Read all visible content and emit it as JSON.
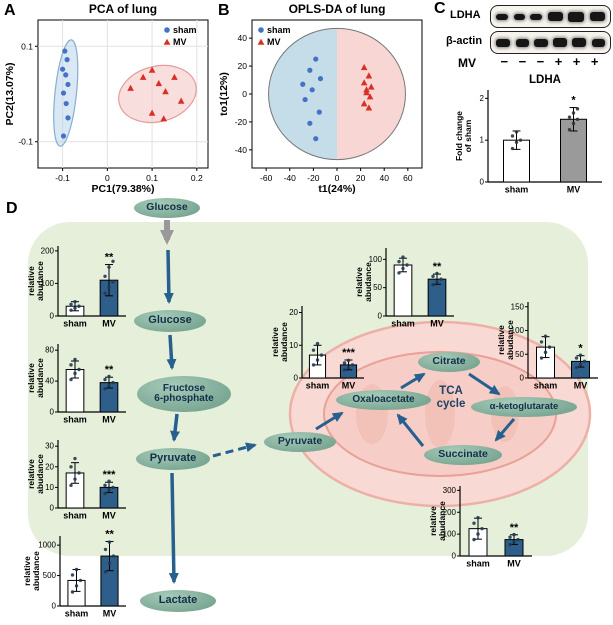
{
  "panels": {
    "a": "A",
    "b": "B",
    "c": "C",
    "d": "D"
  },
  "blot": {
    "ldha_label": "LDHA",
    "actin_label": "β-actin",
    "mv_label": "MV",
    "mv_signs": [
      "−",
      "−",
      "−",
      "+",
      "+",
      "+"
    ]
  },
  "pathway": {
    "nodes": {
      "glucose_top": "Glucose",
      "glucose": "Glucose",
      "fructose_line1": "Fructose",
      "fructose_line2": "6-phosphate",
      "pyruvate": "Pyruvate",
      "lactate": "Lactate",
      "pyruvate_mito": "Pyruvate",
      "oxaloacetate": "Oxaloacetate",
      "citrate": "Citrate",
      "tca_line1": "TCA",
      "tca_line2": "cycle",
      "ketoglutarate": "α-ketoglutarate",
      "succinate": "Succinate"
    }
  },
  "colors": {
    "sham_marker": "#4472c4",
    "mv_marker": "#d93025",
    "mv_bar_d": "#2e5f8a",
    "mv_bar_c": "#9a9a9a",
    "background_green": "#e5efda",
    "mitochondrion_pink": "#f8d9d3",
    "node_teal": "#7ca995"
  },
  "chart_data": [
    {
      "id": "pca",
      "type": "scatter",
      "title": "PCA of lung",
      "xlabel": "PC1(79.38%)",
      "ylabel": "PC2(13.07%)",
      "xlim": [
        -0.155,
        0.225
      ],
      "ylim": [
        -0.155,
        0.155
      ],
      "xticks": [
        -0.1,
        0,
        0.1,
        0.2
      ],
      "yticks": [
        -0.1,
        0.1
      ],
      "grid": true,
      "legend_pos": "right",
      "series": [
        {
          "name": "sham",
          "marker": "circle",
          "color": "#4472c4",
          "points": [
            [
              -0.095,
              0.09
            ],
            [
              -0.09,
              0.072
            ],
            [
              -0.1,
              0.052
            ],
            [
              -0.093,
              0.04
            ],
            [
              -0.088,
              0.02
            ],
            [
              -0.098,
              0.002
            ],
            [
              -0.092,
              -0.02
            ],
            [
              -0.088,
              -0.05
            ],
            [
              -0.098,
              -0.088
            ]
          ]
        },
        {
          "name": "MV",
          "marker": "triangle",
          "color": "#d93025",
          "points": [
            [
              0.052,
              0.012
            ],
            [
              0.08,
              0.035
            ],
            [
              0.1,
              0.05
            ],
            [
              0.115,
              0.022
            ],
            [
              0.13,
              0.005
            ],
            [
              0.15,
              0.035
            ],
            [
              0.165,
              -0.015
            ],
            [
              0.1,
              -0.04
            ],
            [
              0.126,
              -0.052
            ]
          ]
        }
      ],
      "ellipses": [
        {
          "cx": -0.093,
          "cy": 0.002,
          "rx": 0.024,
          "ry": 0.112,
          "angle": 6,
          "fill": "#b9d5eb",
          "opacity": 0.55,
          "stroke": "#86aed3"
        },
        {
          "cx": 0.112,
          "cy": 0.0,
          "rx": 0.088,
          "ry": 0.058,
          "angle": -14,
          "fill": "#f5c8c8",
          "opacity": 0.6,
          "stroke": "#e49c9c"
        }
      ]
    },
    {
      "id": "oplsda",
      "type": "scatter",
      "title": "OPLS-DA of lung",
      "xlabel": "t1(24%)",
      "ylabel": "to1(12%)",
      "xlim": [
        -72,
        72
      ],
      "ylim": [
        -53,
        53
      ],
      "xticks": [
        -60,
        -40,
        -20,
        0,
        20,
        40,
        60
      ],
      "yticks": [
        -40,
        -20,
        0,
        20,
        40
      ],
      "grid": false,
      "legend_pos": "left",
      "split_ellipse": {
        "cx": 0,
        "cy": 0,
        "rx": 58,
        "ry": 47,
        "left_fill": "#c5dde9",
        "right_fill": "#f7d6d4"
      },
      "series": [
        {
          "name": "sham",
          "marker": "circle",
          "color": "#4472c4",
          "points": [
            [
              -18,
              25
            ],
            [
              -23,
              17
            ],
            [
              -14,
              11
            ],
            [
              -21,
              3
            ],
            [
              -27,
              -4
            ],
            [
              -15,
              -13
            ],
            [
              -23,
              -21
            ],
            [
              -18,
              -32
            ],
            [
              -29,
              7
            ]
          ]
        },
        {
          "name": "MV",
          "marker": "triangle",
          "color": "#d93025",
          "points": [
            [
              23,
              19
            ],
            [
              27,
              13
            ],
            [
              23,
              8
            ],
            [
              29,
              5
            ],
            [
              25,
              1
            ],
            [
              28,
              -2
            ],
            [
              23,
              -7
            ],
            [
              27,
              -10
            ],
            [
              25,
              3
            ]
          ]
        }
      ]
    },
    {
      "id": "ldha",
      "type": "bar",
      "title": "LDHA",
      "ylabel_lines": [
        "Fold change",
        "of sham"
      ],
      "categories": [
        "sham",
        "MV"
      ],
      "values": [
        1.0,
        1.5
      ],
      "errors": [
        0.22,
        0.28
      ],
      "yticks": [
        0,
        1,
        2
      ],
      "ylim": [
        0,
        2.2
      ],
      "bar_colors": [
        "#ffffff",
        "#9a9a9a"
      ],
      "dot_color": "#333333",
      "significance": [
        null,
        "*"
      ],
      "points": [
        [
          0.8,
          0.95,
          1.0,
          1.1,
          1.2
        ],
        [
          1.25,
          1.4,
          1.5,
          1.55,
          1.65,
          1.75
        ]
      ],
      "ml": 34,
      "mt": 18,
      "bw": 26
    },
    {
      "id": "glucose",
      "type": "bar",
      "ylabel_lines": [
        "relative",
        "abudance"
      ],
      "categories": [
        "sham",
        "MV"
      ],
      "values": [
        30,
        110
      ],
      "errors": [
        14,
        48
      ],
      "yticks": [
        0,
        100,
        200
      ],
      "ylim": [
        0,
        215
      ],
      "bar_colors": [
        "#ffffff",
        "#2e5f8a"
      ],
      "dot_color": "#203a52",
      "significance": [
        null,
        "**"
      ],
      "points": [
        [
          18,
          24,
          30,
          36,
          44
        ],
        [
          70,
          88,
          105,
          122,
          150,
          168
        ]
      ]
    },
    {
      "id": "fructose6p",
      "type": "bar",
      "ylabel_lines": [
        "relative",
        "abudance"
      ],
      "categories": [
        "sham",
        "MV"
      ],
      "values": [
        55,
        38
      ],
      "errors": [
        11,
        7
      ],
      "yticks": [
        0,
        40,
        80
      ],
      "ylim": [
        0,
        88
      ],
      "bar_colors": [
        "#ffffff",
        "#2e5f8a"
      ],
      "dot_color": "#203a52",
      "significance": [
        null,
        "**"
      ],
      "points": [
        [
          42,
          50,
          55,
          61,
          68
        ],
        [
          30,
          34,
          38,
          42,
          46
        ]
      ]
    },
    {
      "id": "pyruvate",
      "type": "bar",
      "ylabel_lines": [
        "relative",
        "abudance"
      ],
      "categories": [
        "sham",
        "MV"
      ],
      "values": [
        17,
        10
      ],
      "errors": [
        5,
        2.5
      ],
      "yticks": [
        0,
        10,
        20,
        30
      ],
      "ylim": [
        0,
        33
      ],
      "bar_colors": [
        "#ffffff",
        "#2e5f8a"
      ],
      "dot_color": "#203a52",
      "significance": [
        null,
        "***"
      ],
      "points": [
        [
          11,
          14,
          17,
          20,
          24
        ],
        [
          7,
          9,
          10,
          11,
          13
        ]
      ]
    },
    {
      "id": "lactate",
      "type": "bar",
      "ylabel_lines": [
        "relative",
        "abudance"
      ],
      "categories": [
        "sham",
        "MV"
      ],
      "values": [
        420,
        820
      ],
      "errors": [
        180,
        240
      ],
      "yticks": [
        0,
        500,
        1000
      ],
      "ylim": [
        0,
        1150
      ],
      "bar_colors": [
        "#ffffff",
        "#2e5f8a"
      ],
      "dot_color": "#203a52",
      "significance": [
        null,
        "**"
      ],
      "points": [
        [
          230,
          330,
          420,
          510,
          600
        ],
        [
          560,
          700,
          820,
          930,
          1050
        ]
      ],
      "ml": 38
    },
    {
      "id": "oxaloacetate",
      "type": "bar",
      "ylabel_lines": [
        "relative",
        "abudance"
      ],
      "categories": [
        "sham",
        "MV"
      ],
      "values": [
        7,
        4
      ],
      "errors": [
        3,
        1.5
      ],
      "yticks": [
        0,
        10,
        20
      ],
      "ylim": [
        0,
        22
      ],
      "bar_colors": [
        "#ffffff",
        "#2e5f8a"
      ],
      "dot_color": "#203a52",
      "significance": [
        null,
        "***"
      ],
      "points": [
        [
          4,
          5.5,
          7,
          8.5,
          10.5
        ],
        [
          2.5,
          3.2,
          4,
          4.6,
          5.4
        ]
      ]
    },
    {
      "id": "citrate",
      "type": "bar",
      "ylabel_lines": [
        "relative",
        "abudance"
      ],
      "categories": [
        "sham",
        "MV"
      ],
      "values": [
        90,
        65
      ],
      "errors": [
        12,
        9
      ],
      "yticks": [
        0,
        50,
        100
      ],
      "ylim": [
        0,
        120
      ],
      "bar_colors": [
        "#ffffff",
        "#2e5f8a"
      ],
      "dot_color": "#203a52",
      "significance": [
        null,
        "**"
      ],
      "points": [
        [
          76,
          84,
          90,
          96,
          104
        ],
        [
          55,
          60,
          65,
          70,
          75
        ]
      ]
    },
    {
      "id": "aketoglutarate",
      "type": "bar",
      "ylabel_lines": [
        "relative",
        "abudance"
      ],
      "categories": [
        "sham",
        "MV"
      ],
      "values": [
        65,
        35
      ],
      "errors": [
        22,
        12
      ],
      "yticks": [
        0,
        50,
        100,
        150
      ],
      "ylim": [
        0,
        160
      ],
      "bar_colors": [
        "#ffffff",
        "#2e5f8a"
      ],
      "dot_color": "#203a52",
      "significance": [
        null,
        "*"
      ],
      "points": [
        [
          42,
          54,
          65,
          76,
          88
        ],
        [
          22,
          28,
          35,
          42,
          48
        ]
      ]
    },
    {
      "id": "succinate",
      "type": "bar",
      "ylabel_lines": [
        "relative",
        "abudance"
      ],
      "categories": [
        "sham",
        "MV"
      ],
      "values": [
        125,
        75
      ],
      "errors": [
        48,
        22
      ],
      "yticks": [
        0,
        100,
        200,
        300
      ],
      "ylim": [
        0,
        320
      ],
      "bar_colors": [
        "#ffffff",
        "#2e5f8a"
      ],
      "dot_color": "#203a52",
      "significance": [
        null,
        "**"
      ],
      "points": [
        [
          75,
          100,
          125,
          150,
          175
        ],
        [
          52,
          64,
          75,
          86,
          98
        ]
      ]
    }
  ]
}
